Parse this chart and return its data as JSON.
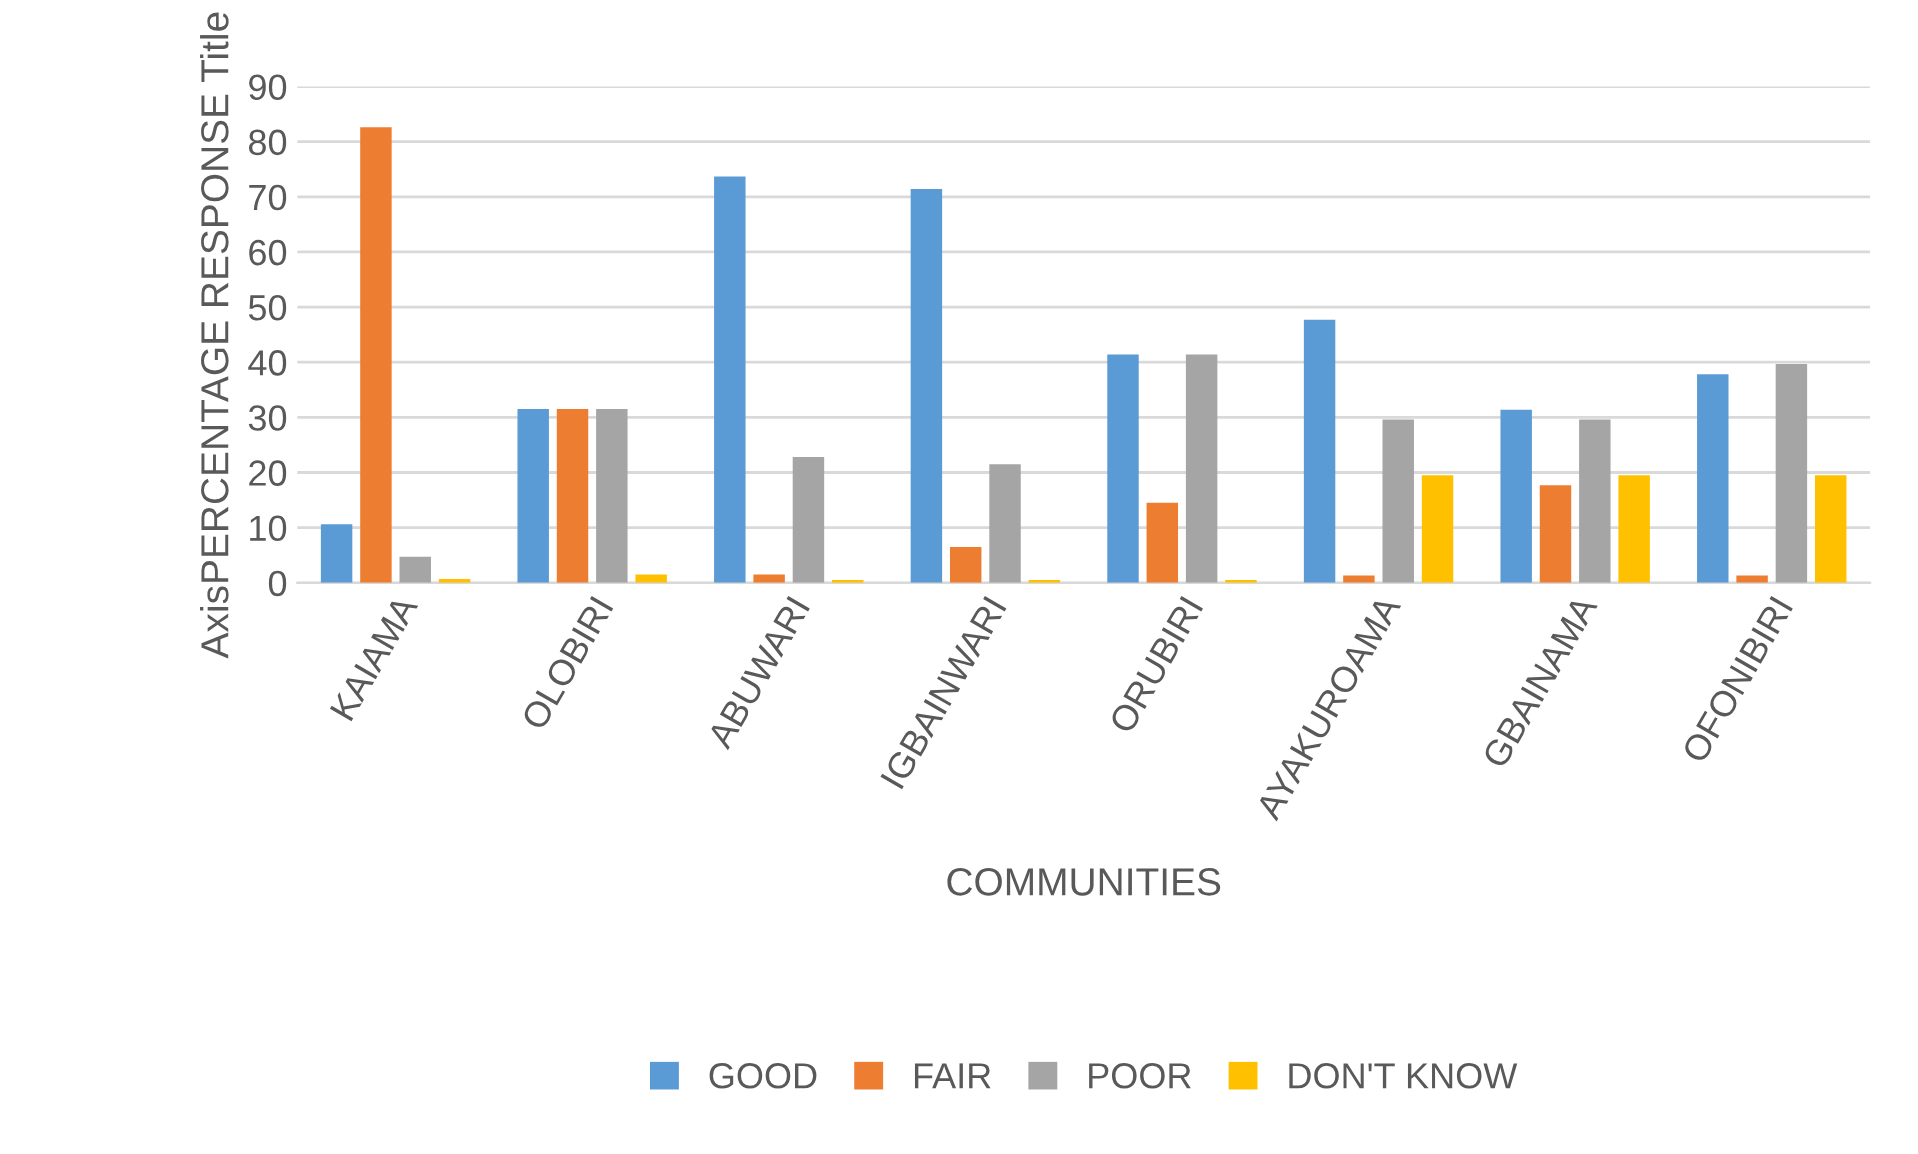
{
  "chart_data": {
    "type": "bar",
    "xlabel": "COMMUNITIES",
    "ylabel": "AxisPERCENTAGE RESPONSE Title",
    "categories": [
      "KAIAMA",
      "OLOBIRI",
      "ABUWARI",
      "IGBAINWARI",
      "ORUBIRI",
      "AYAKUROAMA",
      "GBAINAMA",
      "OFONIBIRI"
    ],
    "series": [
      {
        "name": "GOOD",
        "color": "#5b9bd5",
        "values": [
          10.6,
          31.5,
          73.7,
          71.4,
          41.4,
          47.7,
          31.4,
          37.8
        ]
      },
      {
        "name": "FAIR",
        "color": "#ed7d31",
        "values": [
          82.6,
          31.5,
          1.5,
          6.5,
          14.5,
          1.3,
          17.7,
          1.3
        ]
      },
      {
        "name": "POOR",
        "color": "#a5a5a5",
        "values": [
          4.7,
          31.5,
          22.8,
          21.5,
          41.4,
          29.6,
          29.6,
          39.7
        ]
      },
      {
        "name": "DON'T KNOW",
        "color": "#ffc000",
        "values": [
          0.7,
          1.5,
          0.5,
          0.5,
          0.5,
          19.5,
          19.5,
          19.5
        ]
      }
    ],
    "ylim": [
      0,
      90
    ],
    "yticks": [
      0,
      10,
      20,
      30,
      40,
      50,
      60,
      70,
      80,
      90
    ],
    "grid": "y",
    "legend": "bottom"
  }
}
